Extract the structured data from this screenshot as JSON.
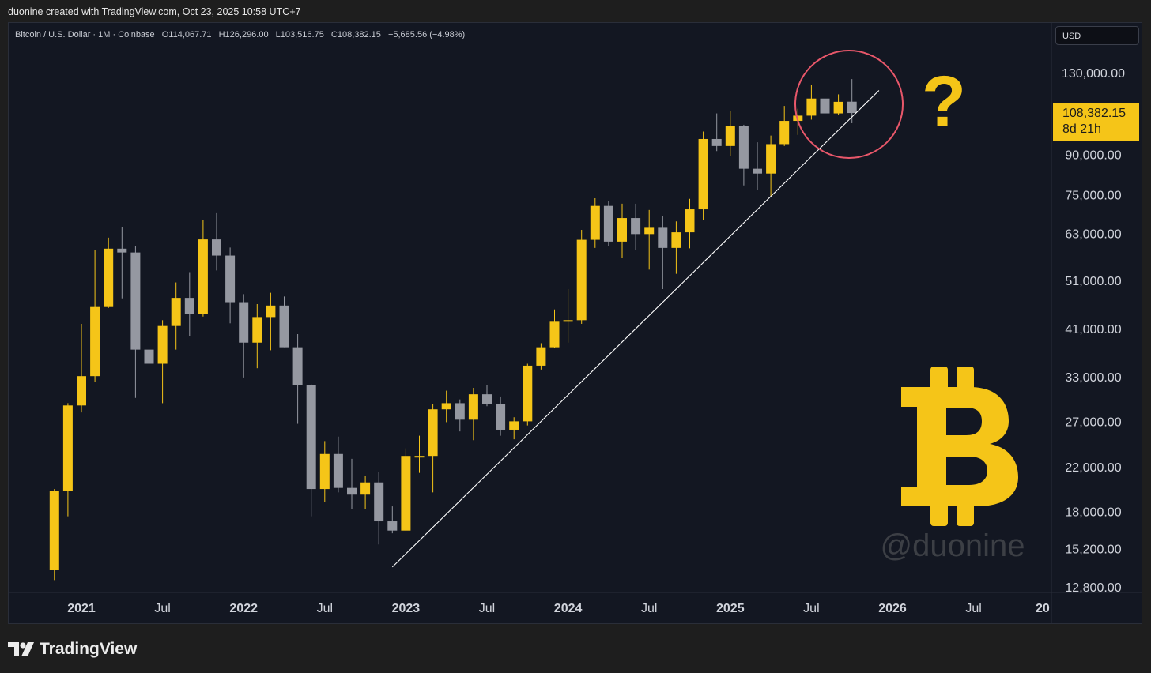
{
  "caption": "duonine created with TradingView.com, Oct 23, 2025 10:58 UTC+7",
  "legend": {
    "symbol": "Bitcoin / U.S. Dollar · 1M · Coinbase",
    "open": "O114,067.71",
    "high": "H126,296.00",
    "low": "L103,516.75",
    "close": "C108,382.15",
    "change": "−5,685.56 (−4.98%)"
  },
  "currency_label": "USD",
  "price_tag": {
    "price": "108,382.15",
    "countdown": "8d 21h"
  },
  "annotation": {
    "question": "?",
    "watermark": "@duonine",
    "logo": "bitcoin-logo"
  },
  "brand": "TradingView",
  "colors": {
    "up": "#f5c518",
    "down": "#9598a1",
    "background": "#131722",
    "trendline": "#ffffff",
    "circle": "#e8576a"
  },
  "chart_data": {
    "type": "candlestick",
    "interval": "1M",
    "scale": "log",
    "y_ticks": [
      "130,000.00",
      "90,000.00",
      "75,000.00",
      "63,000.00",
      "51,000.00",
      "41,000.00",
      "33,000.00",
      "27,000.00",
      "22,000.00",
      "18,000.00",
      "15,200.00",
      "12,800.00"
    ],
    "x_ticks": [
      "2021",
      "Jul",
      "2022",
      "Jul",
      "2023",
      "Jul",
      "2024",
      "Jul",
      "2025",
      "Jul",
      "2026",
      "Jul",
      "20"
    ],
    "candles": [
      {
        "date": "2020-11",
        "o": 13800,
        "h": 19900,
        "l": 13200,
        "c": 19700
      },
      {
        "date": "2020-12",
        "o": 19700,
        "h": 29300,
        "l": 17600,
        "c": 29000
      },
      {
        "date": "2021-01",
        "o": 29000,
        "h": 41900,
        "l": 28100,
        "c": 33100
      },
      {
        "date": "2021-02",
        "o": 33100,
        "h": 58400,
        "l": 32300,
        "c": 45200
      },
      {
        "date": "2021-03",
        "o": 45200,
        "h": 61800,
        "l": 45000,
        "c": 58800
      },
      {
        "date": "2021-04",
        "o": 58800,
        "h": 64900,
        "l": 47000,
        "c": 57800
      },
      {
        "date": "2021-05",
        "o": 57800,
        "h": 59600,
        "l": 30000,
        "c": 37300
      },
      {
        "date": "2021-06",
        "o": 37300,
        "h": 41300,
        "l": 28800,
        "c": 35000
      },
      {
        "date": "2021-07",
        "o": 35000,
        "h": 42600,
        "l": 29300,
        "c": 41500
      },
      {
        "date": "2021-08",
        "o": 41500,
        "h": 50500,
        "l": 37300,
        "c": 47100
      },
      {
        "date": "2021-09",
        "o": 47100,
        "h": 52900,
        "l": 39600,
        "c": 43800
      },
      {
        "date": "2021-10",
        "o": 43800,
        "h": 67000,
        "l": 43300,
        "c": 61300
      },
      {
        "date": "2021-11",
        "o": 61300,
        "h": 69000,
        "l": 53300,
        "c": 57000
      },
      {
        "date": "2021-12",
        "o": 57000,
        "h": 59100,
        "l": 42000,
        "c": 46200
      },
      {
        "date": "2022-01",
        "o": 46200,
        "h": 47900,
        "l": 32900,
        "c": 38500
      },
      {
        "date": "2022-02",
        "o": 38500,
        "h": 45800,
        "l": 34300,
        "c": 43200
      },
      {
        "date": "2022-03",
        "o": 43200,
        "h": 48200,
        "l": 37200,
        "c": 45500
      },
      {
        "date": "2022-04",
        "o": 45500,
        "h": 47400,
        "l": 37700,
        "c": 37700
      },
      {
        "date": "2022-05",
        "o": 37700,
        "h": 40000,
        "l": 26700,
        "c": 31800
      },
      {
        "date": "2022-06",
        "o": 31800,
        "h": 31900,
        "l": 17600,
        "c": 19900
      },
      {
        "date": "2022-07",
        "o": 19900,
        "h": 24700,
        "l": 18800,
        "c": 23300
      },
      {
        "date": "2022-08",
        "o": 23300,
        "h": 25200,
        "l": 19600,
        "c": 20000
      },
      {
        "date": "2022-09",
        "o": 20000,
        "h": 22800,
        "l": 18200,
        "c": 19400
      },
      {
        "date": "2022-10",
        "o": 19400,
        "h": 21100,
        "l": 18200,
        "c": 20500
      },
      {
        "date": "2022-11",
        "o": 20500,
        "h": 21500,
        "l": 15500,
        "c": 17200
      },
      {
        "date": "2022-12",
        "o": 17200,
        "h": 18400,
        "l": 16300,
        "c": 16500
      },
      {
        "date": "2023-01",
        "o": 16500,
        "h": 23900,
        "l": 16500,
        "c": 23100
      },
      {
        "date": "2023-02",
        "o": 23100,
        "h": 25300,
        "l": 21400,
        "c": 23100
      },
      {
        "date": "2023-03",
        "o": 23100,
        "h": 29200,
        "l": 19600,
        "c": 28500
      },
      {
        "date": "2023-04",
        "o": 28500,
        "h": 31000,
        "l": 26900,
        "c": 29300
      },
      {
        "date": "2023-05",
        "o": 29300,
        "h": 29800,
        "l": 25800,
        "c": 27200
      },
      {
        "date": "2023-06",
        "o": 27200,
        "h": 31400,
        "l": 24800,
        "c": 30500
      },
      {
        "date": "2023-07",
        "o": 30500,
        "h": 31800,
        "l": 28900,
        "c": 29200
      },
      {
        "date": "2023-08",
        "o": 29200,
        "h": 30200,
        "l": 25300,
        "c": 26000
      },
      {
        "date": "2023-09",
        "o": 26000,
        "h": 27500,
        "l": 24900,
        "c": 27000
      },
      {
        "date": "2023-10",
        "o": 27000,
        "h": 35000,
        "l": 26500,
        "c": 34700
      },
      {
        "date": "2023-11",
        "o": 34700,
        "h": 38400,
        "l": 34100,
        "c": 37700
      },
      {
        "date": "2023-12",
        "o": 37700,
        "h": 44700,
        "l": 37600,
        "c": 42300
      },
      {
        "date": "2024-01",
        "o": 42300,
        "h": 49000,
        "l": 38500,
        "c": 42600
      },
      {
        "date": "2024-02",
        "o": 42600,
        "h": 64000,
        "l": 41900,
        "c": 61200
      },
      {
        "date": "2024-03",
        "o": 61200,
        "h": 73800,
        "l": 59000,
        "c": 71300
      },
      {
        "date": "2024-04",
        "o": 71300,
        "h": 72800,
        "l": 59600,
        "c": 60700
      },
      {
        "date": "2024-05",
        "o": 60700,
        "h": 72000,
        "l": 56500,
        "c": 67500
      },
      {
        "date": "2024-06",
        "o": 67500,
        "h": 72000,
        "l": 58400,
        "c": 62800
      },
      {
        "date": "2024-07",
        "o": 62800,
        "h": 70000,
        "l": 53500,
        "c": 64600
      },
      {
        "date": "2024-08",
        "o": 64600,
        "h": 68200,
        "l": 49000,
        "c": 59000
      },
      {
        "date": "2024-09",
        "o": 59000,
        "h": 66500,
        "l": 52500,
        "c": 63300
      },
      {
        "date": "2024-10",
        "o": 63300,
        "h": 73600,
        "l": 58900,
        "c": 70200
      },
      {
        "date": "2024-11",
        "o": 70200,
        "h": 99700,
        "l": 66800,
        "c": 96400
      },
      {
        "date": "2024-12",
        "o": 96400,
        "h": 108200,
        "l": 91300,
        "c": 93400
      },
      {
        "date": "2025-01",
        "o": 93400,
        "h": 109300,
        "l": 89200,
        "c": 102400
      },
      {
        "date": "2025-02",
        "o": 102400,
        "h": 102800,
        "l": 78200,
        "c": 84300
      },
      {
        "date": "2025-03",
        "o": 84300,
        "h": 95000,
        "l": 76600,
        "c": 82500
      },
      {
        "date": "2025-04",
        "o": 82500,
        "h": 97900,
        "l": 74500,
        "c": 94200
      },
      {
        "date": "2025-05",
        "o": 94200,
        "h": 111900,
        "l": 93400,
        "c": 104600
      },
      {
        "date": "2025-06",
        "o": 104600,
        "h": 110500,
        "l": 98200,
        "c": 107100
      },
      {
        "date": "2025-07",
        "o": 107100,
        "h": 123200,
        "l": 105200,
        "c": 115700
      },
      {
        "date": "2025-08",
        "o": 115700,
        "h": 124500,
        "l": 107300,
        "c": 108200
      },
      {
        "date": "2025-09",
        "o": 108200,
        "h": 117900,
        "l": 107300,
        "c": 114000
      },
      {
        "date": "2025-10",
        "o": 114067.71,
        "h": 126296,
        "l": 103516.75,
        "c": 108382.15
      }
    ],
    "trendline": {
      "from": {
        "date": "2022-12",
        "price": 14000
      },
      "to": {
        "date": "2025-12",
        "price": 120000
      }
    }
  }
}
